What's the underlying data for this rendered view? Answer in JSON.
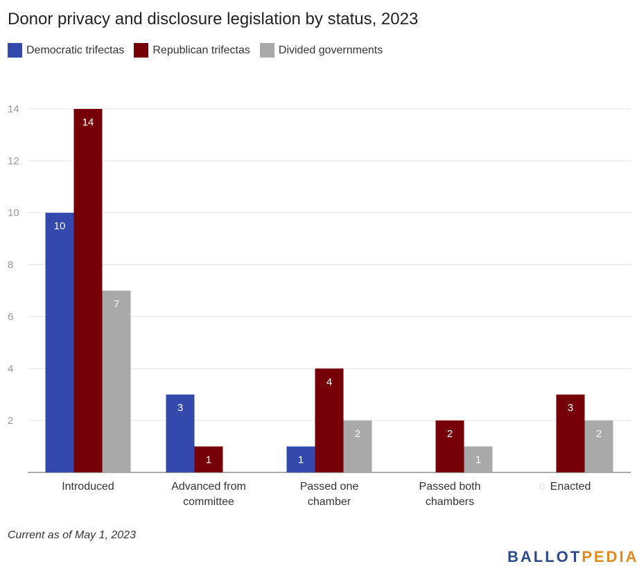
{
  "chart_data": {
    "type": "bar",
    "title": "Donor privacy and disclosure legislation by status, 2023",
    "categories": [
      [
        "Introduced"
      ],
      [
        "Advanced from",
        "committee"
      ],
      [
        "Passed one",
        "chamber"
      ],
      [
        "Passed both",
        "chambers"
      ],
      [
        "Enacted"
      ]
    ],
    "series": [
      {
        "name": "Democratic trifectas",
        "color": "#3349ac",
        "values": [
          10,
          3,
          1,
          0,
          0
        ]
      },
      {
        "name": "Republican trifectas",
        "color": "#760008",
        "values": [
          14,
          1,
          4,
          2,
          3
        ]
      },
      {
        "name": "Divided governments",
        "color": "#a9a9a9",
        "values": [
          7,
          0,
          2,
          1,
          2
        ]
      }
    ],
    "ylim": [
      0,
      14
    ],
    "yticks": [
      2,
      4,
      6,
      8,
      10,
      12,
      14
    ],
    "grid": true,
    "legend": "top-left"
  },
  "footnote": "Current as of May 1, 2023",
  "logo": {
    "part1": "BALLOT",
    "part2": "PEDIA"
  }
}
